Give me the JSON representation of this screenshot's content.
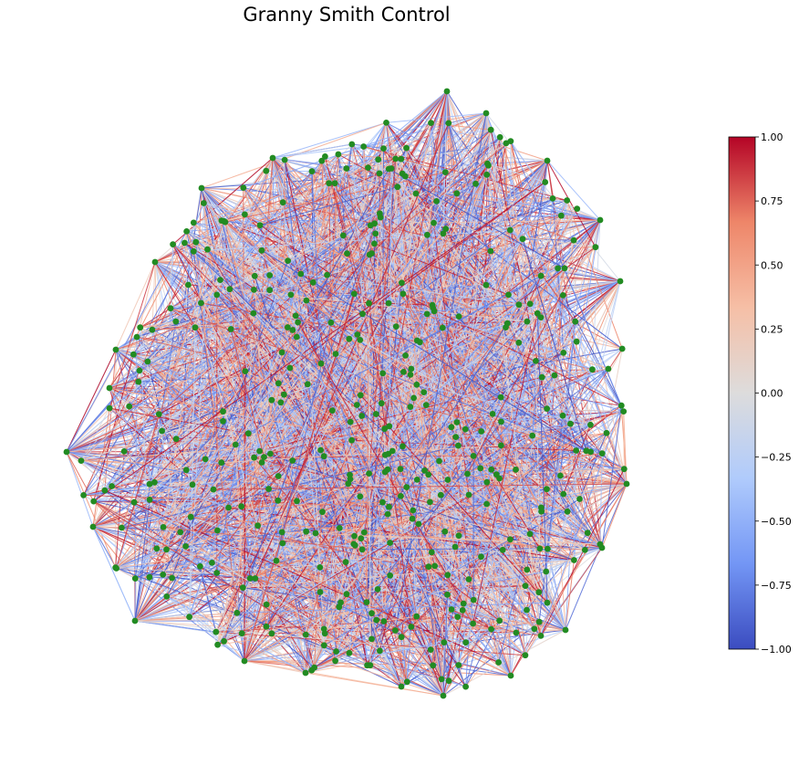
{
  "title": "Granny Smith Control",
  "colorbar": {
    "min": -1.0,
    "max": 1.0,
    "ticks": [
      "1.00",
      "0.75",
      "0.50",
      "0.25",
      "0.00",
      "−0.25",
      "−0.50",
      "−0.75",
      "−1.00"
    ],
    "colormap": "coolwarm",
    "colors": [
      "#3b4cc0",
      "#7396f5",
      "#b0cbfc",
      "#dddcdc",
      "#f6bfa6",
      "#ee8669",
      "#b40426"
    ]
  },
  "network": {
    "node_color": "#228b22",
    "edge_value_range": [
      -1,
      1
    ]
  }
}
